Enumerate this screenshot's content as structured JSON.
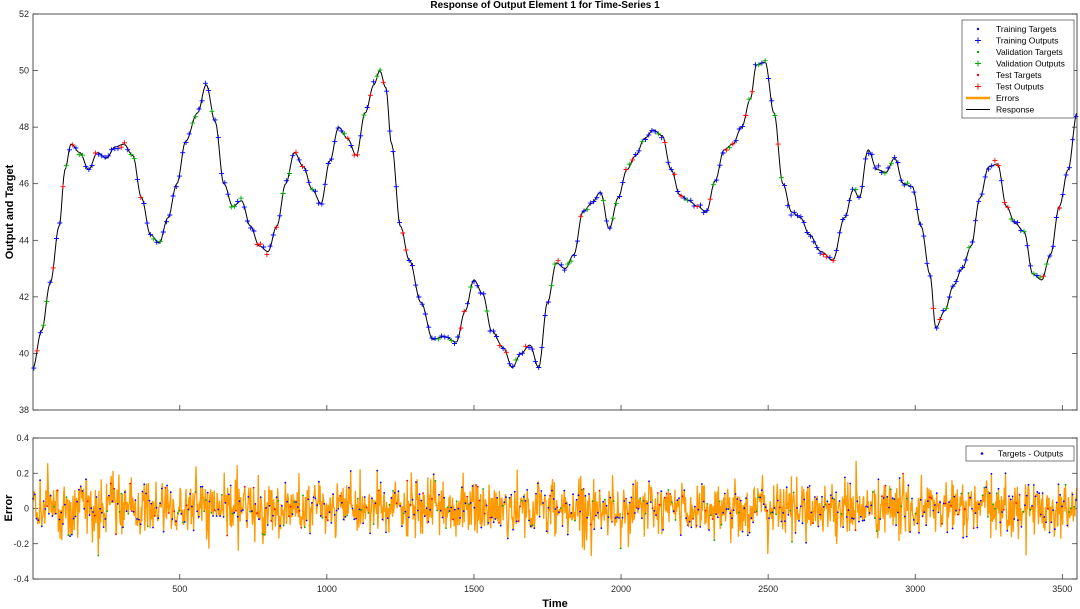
{
  "chart_data": [
    {
      "type": "line",
      "title": "Response of Output Element 1 for Time-Series 1",
      "ylabel": "Output and Target",
      "xlabel": "",
      "xlim": [
        1,
        3550
      ],
      "ylim": [
        38,
        52
      ],
      "yticks": [
        38,
        40,
        42,
        44,
        46,
        48,
        50,
        52
      ],
      "grid": false,
      "legend_position": "top-right",
      "legend": [
        {
          "label": "Training Targets",
          "marker": "dot",
          "color": "#0000ff"
        },
        {
          "label": "Training Outputs",
          "marker": "plus",
          "color": "#0000ff"
        },
        {
          "label": "Validation Targets",
          "marker": "dot",
          "color": "#00aa00"
        },
        {
          "label": "Validation Outputs",
          "marker": "plus",
          "color": "#00aa00"
        },
        {
          "label": "Test Targets",
          "marker": "dot",
          "color": "#ff0000"
        },
        {
          "label": "Test Outputs",
          "marker": "plus",
          "color": "#ff0000"
        },
        {
          "label": "Errors",
          "marker": "line",
          "color": "#ff9900"
        },
        {
          "label": "Response",
          "marker": "line",
          "color": "#000000"
        }
      ],
      "series": [
        {
          "name": "Response",
          "color": "#000000",
          "x": [
            1,
            30,
            60,
            90,
            110,
            130,
            160,
            190,
            220,
            250,
            280,
            310,
            340,
            370,
            400,
            430,
            460,
            490,
            520,
            560,
            590,
            620,
            650,
            680,
            710,
            740,
            770,
            800,
            830,
            860,
            890,
            920,
            950,
            980,
            1010,
            1040,
            1070,
            1100,
            1130,
            1160,
            1180,
            1200,
            1220,
            1250,
            1280,
            1320,
            1360,
            1400,
            1440,
            1470,
            1500,
            1530,
            1560,
            1600,
            1630,
            1660,
            1690,
            1720,
            1750,
            1780,
            1810,
            1840,
            1870,
            1900,
            1930,
            1960,
            1990,
            2020,
            2050,
            2080,
            2110,
            2140,
            2170,
            2200,
            2230,
            2260,
            2290,
            2320,
            2350,
            2380,
            2410,
            2440,
            2460,
            2490,
            2520,
            2550,
            2580,
            2610,
            2640,
            2680,
            2720,
            2760,
            2790,
            2810,
            2840,
            2870,
            2900,
            2930,
            2960,
            2990,
            3020,
            3050,
            3070,
            3100,
            3130,
            3160,
            3190,
            3220,
            3250,
            3280,
            3310,
            3340,
            3370,
            3400,
            3430,
            3460,
            3490,
            3520,
            3550
          ],
          "y": [
            39.5,
            40.8,
            42.5,
            44.5,
            46.5,
            47.4,
            47.1,
            46.5,
            47.1,
            46.9,
            47.3,
            47.4,
            47.0,
            45.5,
            44.2,
            43.9,
            44.8,
            46.0,
            47.5,
            48.5,
            49.5,
            48.2,
            46.0,
            45.2,
            45.4,
            44.5,
            43.8,
            43.6,
            44.5,
            46.0,
            47.1,
            46.6,
            45.8,
            45.3,
            46.8,
            48.0,
            47.6,
            47.0,
            48.5,
            49.5,
            50.0,
            49.4,
            47.4,
            44.5,
            43.3,
            41.8,
            40.5,
            40.6,
            40.4,
            41.5,
            42.6,
            42.1,
            40.8,
            40.2,
            39.5,
            40.0,
            40.3,
            39.5,
            41.8,
            43.2,
            43.0,
            43.5,
            45.0,
            45.3,
            45.7,
            44.4,
            45.5,
            46.5,
            47.0,
            47.6,
            47.9,
            47.7,
            46.5,
            45.6,
            45.4,
            45.2,
            45.0,
            46.1,
            47.2,
            47.4,
            48.0,
            49.0,
            50.2,
            50.3,
            48.5,
            46.0,
            45.0,
            44.8,
            44.2,
            43.6,
            43.3,
            44.8,
            45.8,
            45.5,
            47.2,
            46.5,
            46.4,
            46.9,
            46.0,
            45.9,
            44.5,
            42.8,
            40.9,
            41.5,
            42.4,
            43.0,
            43.8,
            45.5,
            46.6,
            46.7,
            45.2,
            44.6,
            44.3,
            42.8,
            42.6,
            43.5,
            45.2,
            46.5,
            48.5
          ]
        }
      ]
    },
    {
      "type": "line",
      "title": "",
      "ylabel": "Error",
      "xlabel": "Time",
      "xlim": [
        1,
        3550
      ],
      "ylim": [
        -0.4,
        0.4
      ],
      "yticks": [
        -0.4,
        -0.2,
        0,
        0.2,
        0.4
      ],
      "xticks": [
        500,
        1000,
        1500,
        2000,
        2500,
        3000,
        3500
      ],
      "grid": false,
      "legend_position": "top-right",
      "legend": [
        {
          "label": "Targets - Outputs",
          "marker": "dot",
          "color": "#0000ff"
        }
      ],
      "series": [
        {
          "name": "Targets - Outputs",
          "color": "#ff9900",
          "y_range": [
            -0.33,
            0.27
          ],
          "approx_std": 0.08
        }
      ]
    }
  ]
}
